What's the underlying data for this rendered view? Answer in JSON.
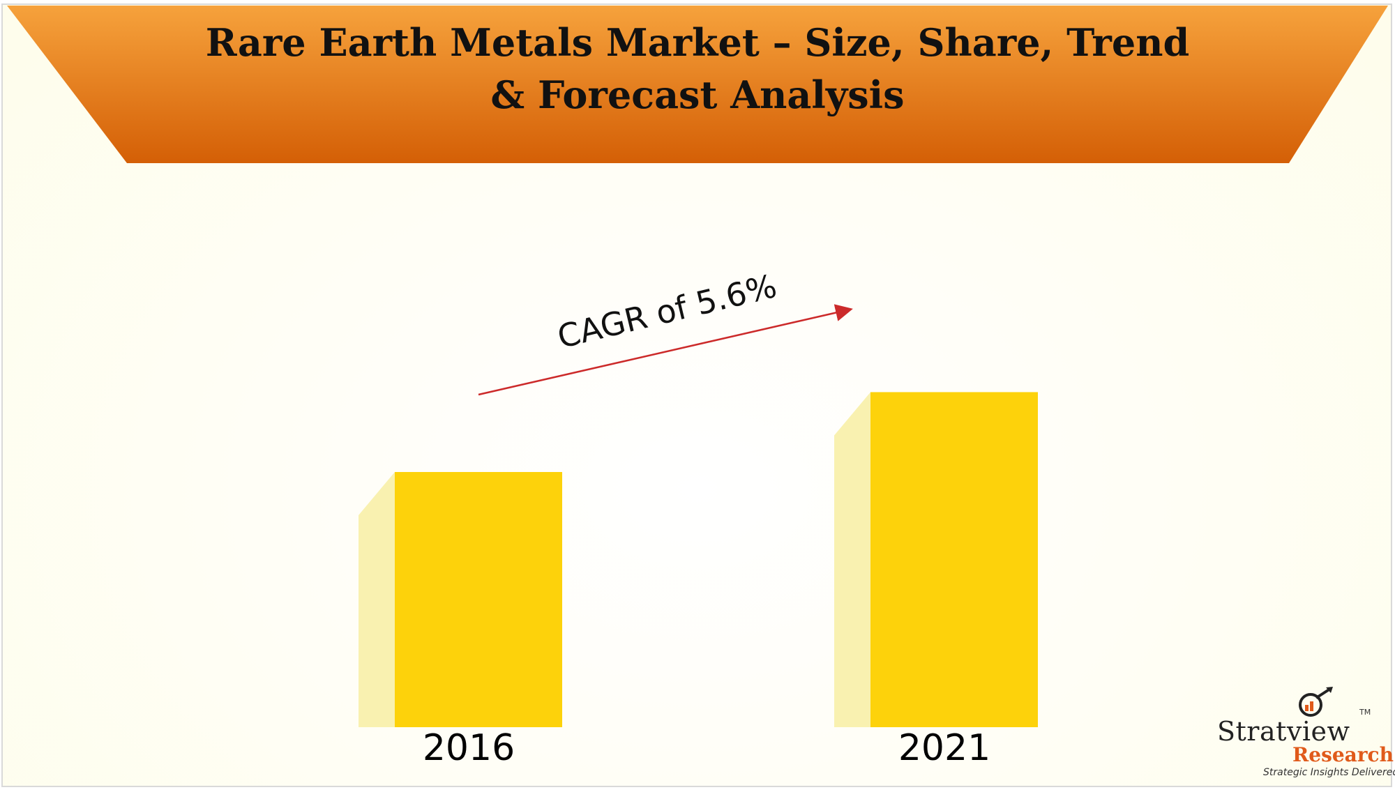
{
  "chart_data": {
    "type": "bar",
    "title_lines": [
      "Rare Earth Metals Market – Size, Share, Trend",
      "& Forecast Analysis"
    ],
    "categories": [
      "2016",
      "2021"
    ],
    "series": [
      {
        "values": [
          100,
          131.3
        ]
      }
    ],
    "annotation": "CAGR of 5.6%",
    "colors": {
      "bar": "#fdd20b",
      "bar_side": "#f9f1b0",
      "banner_top": "#f6a23c",
      "banner_bottom": "#d45f06",
      "arrow": "#cc2a2a"
    }
  },
  "logo": {
    "brand": "Stratview",
    "tm": "TM",
    "sub": "Research",
    "tagline": "Strategic Insights Delivered"
  }
}
